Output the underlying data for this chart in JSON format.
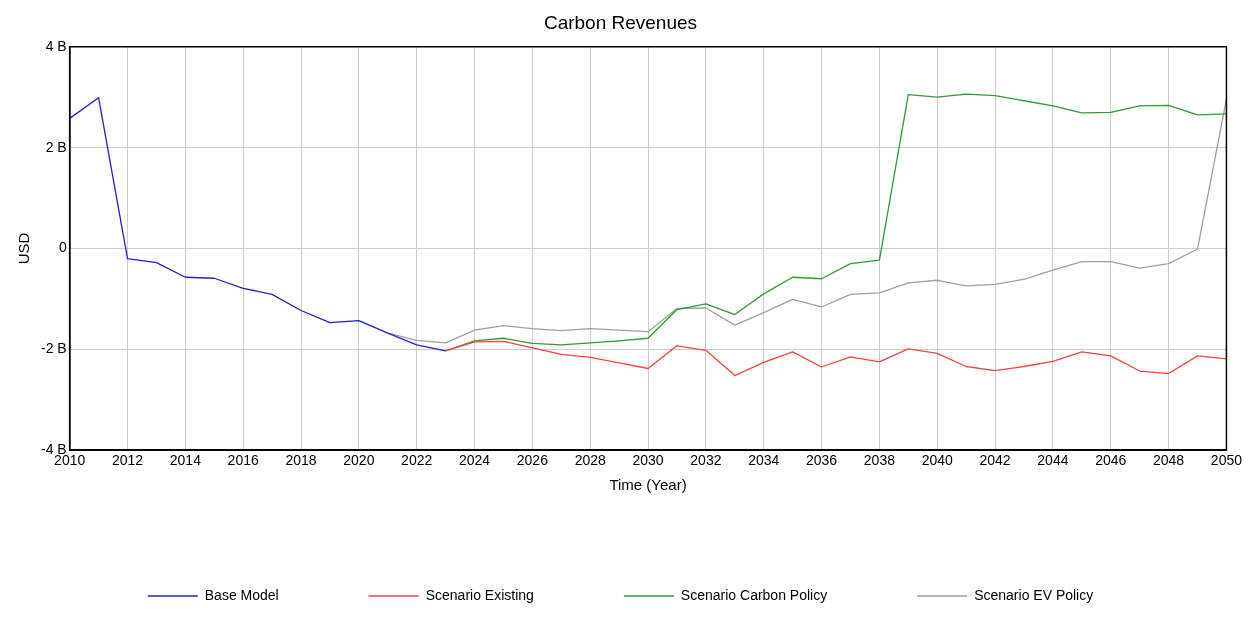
{
  "chart_data": {
    "type": "line",
    "title": "Carbon Revenues",
    "xlabel": "Time (Year)",
    "ylabel": "USD",
    "xlim": [
      2010,
      2050
    ],
    "xticks": [
      2010,
      2012,
      2014,
      2016,
      2018,
      2020,
      2022,
      2024,
      2026,
      2028,
      2030,
      2032,
      2034,
      2036,
      2038,
      2040,
      2042,
      2044,
      2046,
      2048,
      2050
    ],
    "ylim": [
      -4,
      4
    ],
    "yticks": [
      {
        "value": -4,
        "label": "-4 B"
      },
      {
        "value": -2,
        "label": "-2 B"
      },
      0,
      {
        "value": 2,
        "label": "2 B"
      },
      {
        "value": 4,
        "label": "4 B"
      }
    ],
    "grid": true,
    "legend": "bottom",
    "marker": "none",
    "line_style": "solid",
    "series": [
      {
        "name": "Base Model",
        "color": "#2020d0",
        "x": [
          2010,
          2011,
          2012,
          2013,
          2014,
          2015,
          2016,
          2017,
          2018,
          2019,
          2020,
          2021,
          2022,
          2023
        ],
        "values": [
          2.58,
          2.99,
          -0.2,
          -0.28,
          -0.57,
          -0.59,
          -0.79,
          -0.91,
          -1.23,
          -1.47,
          -1.43,
          -1.68,
          -1.91,
          -2.03
        ]
      },
      {
        "name": "Scenario Existing",
        "color": "#ff4040",
        "x": [
          2023,
          2024,
          2025,
          2026,
          2027,
          2028,
          2029,
          2030,
          2031,
          2032,
          2033,
          2034,
          2035,
          2036,
          2037,
          2038,
          2039,
          2040,
          2041,
          2042,
          2043,
          2044,
          2045,
          2046,
          2047,
          2048,
          2049,
          2050
        ],
        "values": [
          -2.03,
          -1.85,
          -1.84,
          -1.97,
          -2.1,
          -2.16,
          -2.27,
          -2.38,
          -1.93,
          -2.02,
          -2.52,
          -2.26,
          -2.05,
          -2.35,
          -2.15,
          -2.25,
          -1.99,
          -2.08,
          -2.34,
          -2.42,
          -2.34,
          -2.24,
          -2.05,
          -2.13,
          -2.43,
          -2.48,
          -2.13,
          -2.19
        ]
      },
      {
        "name": "Scenario Carbon Policy",
        "color": "#339933",
        "x": [
          2023,
          2024,
          2025,
          2026,
          2027,
          2028,
          2029,
          2030,
          2031,
          2032,
          2033,
          2034,
          2035,
          2036,
          2037,
          2038,
          2039,
          2040,
          2041,
          2042,
          2043,
          2044,
          2045,
          2046,
          2047,
          2048,
          2049,
          2050
        ],
        "values": [
          -2.03,
          -1.83,
          -1.78,
          -1.88,
          -1.91,
          -1.87,
          -1.83,
          -1.78,
          -1.21,
          -1.1,
          -1.31,
          -0.9,
          -0.57,
          -0.6,
          -0.3,
          -0.23,
          3.05,
          3.0,
          3.06,
          3.03,
          2.93,
          2.83,
          2.69,
          2.7,
          2.83,
          2.84,
          2.65,
          2.67
        ]
      },
      {
        "name": "Scenario EV Policy",
        "color": "#a0a0a0",
        "x": [
          2021,
          2022,
          2023,
          2024,
          2025,
          2026,
          2027,
          2028,
          2029,
          2030,
          2031,
          2032,
          2033,
          2034,
          2035,
          2036,
          2037,
          2038,
          2039,
          2040,
          2041,
          2042,
          2043,
          2044,
          2045,
          2046,
          2047,
          2048,
          2049,
          2050
        ],
        "values": [
          -1.68,
          -1.82,
          -1.87,
          -1.62,
          -1.53,
          -1.59,
          -1.63,
          -1.59,
          -1.62,
          -1.65,
          -1.19,
          -1.18,
          -1.52,
          -1.27,
          -1.01,
          -1.16,
          -0.91,
          -0.88,
          -0.68,
          -0.63,
          -0.74,
          -0.71,
          -0.61,
          -0.43,
          -0.26,
          -0.26,
          -0.39,
          -0.3,
          -0.01,
          2.96
        ]
      }
    ]
  }
}
